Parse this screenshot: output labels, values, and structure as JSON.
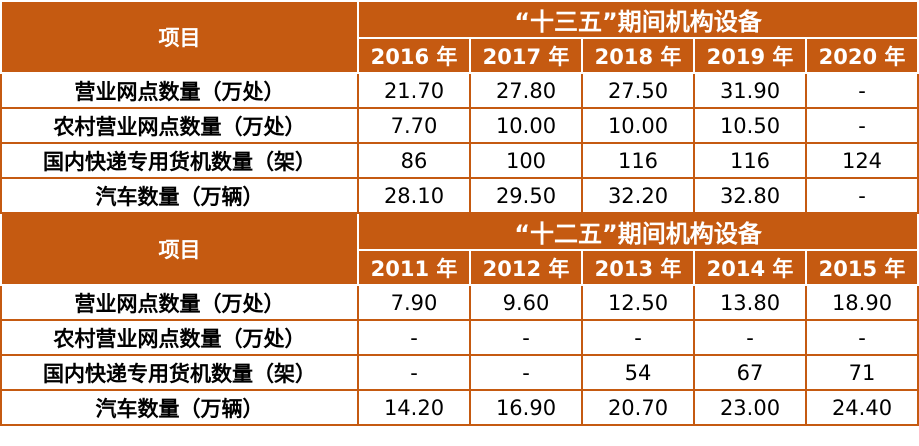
{
  "sections": [
    {
      "header_label": "项目",
      "group_title": "“十三五”期间机构设备",
      "years": [
        "2016 年",
        "2017 年",
        "2018 年",
        "2019 年",
        "2020 年"
      ],
      "rows": [
        {
          "label": "营业网点数量（万处）",
          "values": [
            "21.70",
            "27.80",
            "27.50",
            "31.90",
            "-"
          ]
        },
        {
          "label": "农村营业网点数量（万处）",
          "values": [
            "7.70",
            "10.00",
            "10.00",
            "10.50",
            "-"
          ]
        },
        {
          "label": "国内快递专用货机数量（架）",
          "values": [
            "86",
            "100",
            "116",
            "116",
            "124"
          ]
        },
        {
          "label": "汽车数量（万辆）",
          "values": [
            "28.10",
            "29.50",
            "32.20",
            "32.80",
            "-"
          ]
        }
      ]
    },
    {
      "header_label": "项目",
      "group_title": "“十二五”期间机构设备",
      "years": [
        "2011 年",
        "2012 年",
        "2013 年",
        "2014 年",
        "2015 年"
      ],
      "rows": [
        {
          "label": "营业网点数量（万处）",
          "values": [
            "7.90",
            "9.60",
            "12.50",
            "13.80",
            "18.90"
          ]
        },
        {
          "label": "农村营业网点数量（万处）",
          "values": [
            "-",
            "-",
            "-",
            "-",
            "-"
          ]
        },
        {
          "label": "国内快递专用货机数量（架）",
          "values": [
            "-",
            "-",
            "54",
            "67",
            "71"
          ]
        },
        {
          "label": "汽车数量（万辆）",
          "values": [
            "14.20",
            "16.90",
            "20.70",
            "23.00",
            "24.40"
          ]
        }
      ]
    }
  ]
}
